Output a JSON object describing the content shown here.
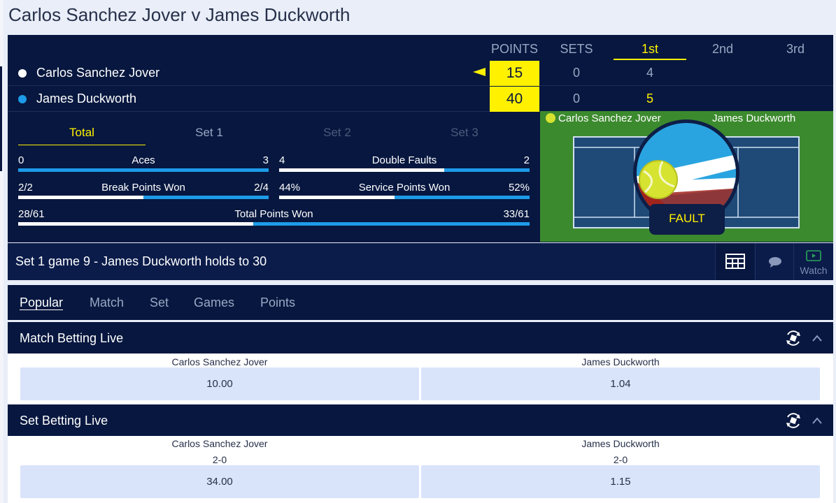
{
  "page": {
    "title": "Carlos Sanchez Jover v James Duckworth"
  },
  "scoreboard": {
    "headers": {
      "points": "POINTS",
      "sets": "SETS",
      "set1": "1st",
      "set2": "2nd",
      "set3": "3rd"
    },
    "players": [
      {
        "name": "Carlos Sanchez Jover",
        "points": "15",
        "sets": "0",
        "set1": "4",
        "dot_color": "#ffffff",
        "serving": true
      },
      {
        "name": "James Duckworth",
        "points": "40",
        "sets": "0",
        "set1": "5",
        "dot_color": "#1d9be8",
        "serving": false
      }
    ],
    "colors": {
      "highlight": "#fff100",
      "accent_blue": "#1d9be8",
      "navy": "#07173f"
    }
  },
  "stats": {
    "tabs": [
      "Total",
      "Set 1",
      "Set 2",
      "Set 3"
    ],
    "active_tab": "Total",
    "rows": [
      {
        "label": "Aces",
        "left": "0",
        "right": "3",
        "left_share": 0
      },
      {
        "label": "Double Faults",
        "left": "4",
        "right": "2",
        "left_share": 0.66
      },
      {
        "label": "Break Points Won",
        "left": "2/2",
        "right": "2/4",
        "left_share": 0.5
      },
      {
        "label": "Service Points Won",
        "left": "44%",
        "right": "52%",
        "left_share": 0.46
      },
      {
        "label": "Total Points Won",
        "left": "28/61",
        "right": "33/61",
        "left_share": 0.46
      }
    ]
  },
  "court": {
    "left_player": "Carlos Sanchez Jover",
    "right_player": "James Duckworth",
    "event": "FAULT"
  },
  "commentary": {
    "text": "Set 1 game 9 - James Duckworth holds to 30",
    "watch_label": "Watch"
  },
  "market_tabs": [
    "Popular",
    "Match",
    "Set",
    "Games",
    "Points"
  ],
  "markets": [
    {
      "title": "Match Betting Live",
      "selections": [
        {
          "name": "Carlos Sanchez Jover",
          "line": "",
          "odds": "10.00"
        },
        {
          "name": "James Duckworth",
          "line": "",
          "odds": "1.04"
        }
      ]
    },
    {
      "title": "Set Betting Live",
      "selections": [
        {
          "name": "Carlos Sanchez Jover",
          "line": "2-0",
          "odds": "34.00"
        },
        {
          "name": "James Duckworth",
          "line": "2-0",
          "odds": "1.15"
        }
      ]
    }
  ]
}
